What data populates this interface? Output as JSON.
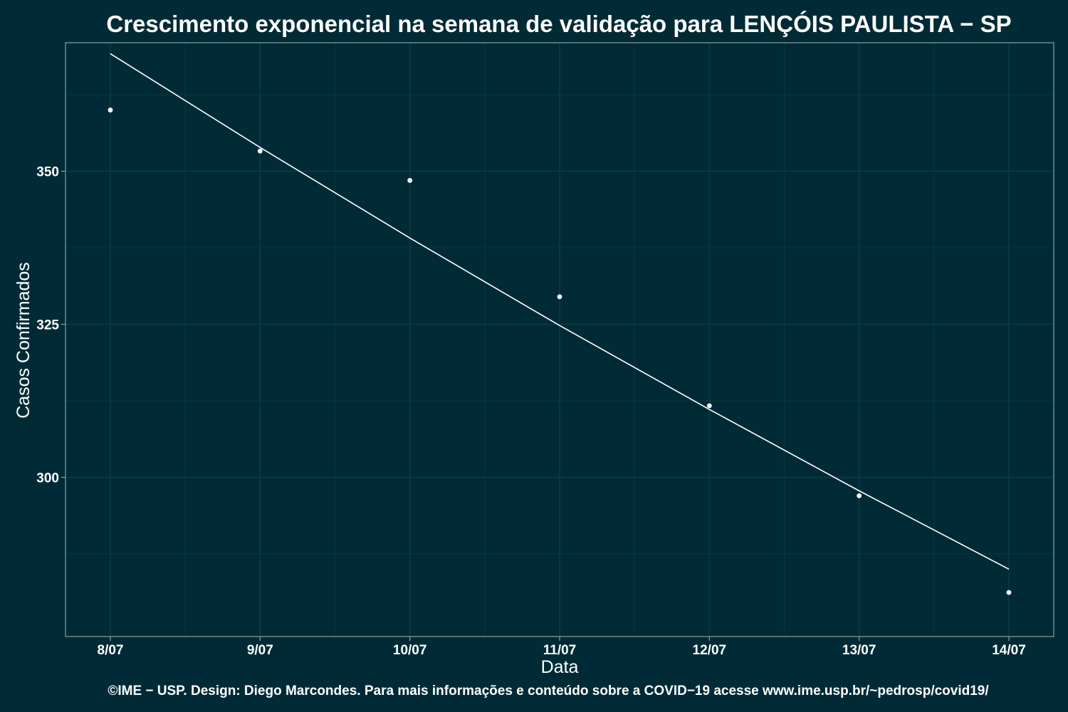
{
  "chart_data": {
    "type": "scatter",
    "title": "Crescimento exponencial na semana de validação para LENÇÓIS PAULISTA − SP",
    "xlabel": "Data",
    "ylabel": "Casos Confirmados",
    "caption": "©IME − USP. Design: Diego Marcondes. Para mais informações e conteúdo sobre a COVID−19 acesse www.ime.usp.br/~pedrosp/covid19/",
    "categories": [
      "8/07",
      "9/07",
      "10/07",
      "11/07",
      "12/07",
      "13/07",
      "14/07"
    ],
    "series": [
      {
        "type": "scatter",
        "values": [
          360.0,
          353.3,
          348.5,
          329.5,
          311.7,
          297.0,
          281.2
        ]
      },
      {
        "type": "line",
        "values": [
          369.2,
          353.9,
          339.1,
          324.8,
          311.1,
          297.8,
          285.0
        ]
      }
    ],
    "yticks": [
      300,
      325,
      350
    ],
    "ylim": [
      274,
      371
    ],
    "grid": true,
    "colors": {
      "background": "#002b36",
      "grid": "#0c3a44",
      "frame": "#8a9ea2",
      "marks": "#ffffff"
    }
  }
}
